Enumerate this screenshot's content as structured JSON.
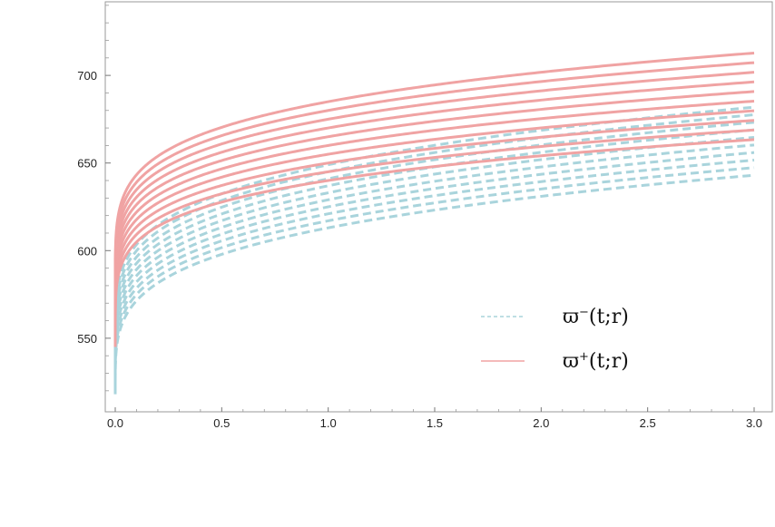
{
  "chart_data": {
    "type": "line",
    "xlim": [
      0,
      3.0
    ],
    "ylim": [
      508,
      742
    ],
    "x_ticks": [
      0.0,
      0.5,
      1.0,
      1.5,
      2.0,
      2.5,
      3.0
    ],
    "x_tick_labels": [
      "0.0",
      "0.5",
      "1.0",
      "1.5",
      "2.0",
      "2.5",
      "3.0"
    ],
    "y_ticks": [
      550,
      600,
      650,
      700
    ],
    "y_tick_labels": [
      "550",
      "600",
      "650",
      "700"
    ],
    "grid": false,
    "legend_position": "center-right",
    "model": "y = start + a*t^p",
    "x": [
      0,
      0.01,
      0.05,
      0.1,
      0.2,
      0.3,
      0.5,
      0.75,
      1.0,
      1.5,
      2.0,
      2.5,
      3.0
    ],
    "series": [
      {
        "name": "ϖ⁻(t;r)",
        "style": "dashed",
        "color": "#a9d4dc",
        "members": [
          {
            "start": 518,
            "a": 95,
            "p": 0.25
          },
          {
            "start": 521,
            "a": 96,
            "p": 0.25
          },
          {
            "start": 524,
            "a": 97,
            "p": 0.25
          },
          {
            "start": 527,
            "a": 98,
            "p": 0.25
          },
          {
            "start": 530,
            "a": 99,
            "p": 0.25
          },
          {
            "start": 533,
            "a": 100,
            "p": 0.25
          },
          {
            "start": 536,
            "a": 101,
            "p": 0.25
          },
          {
            "start": 539,
            "a": 102,
            "p": 0.25
          },
          {
            "start": 542,
            "a": 103,
            "p": 0.25
          },
          {
            "start": 545,
            "a": 104,
            "p": 0.25
          }
        ]
      },
      {
        "name": "ϖ⁺(t;r)",
        "style": "solid",
        "color": "#f0a3a3",
        "members": [
          {
            "start": 545,
            "a": 95,
            "p": 0.2
          },
          {
            "start": 548,
            "a": 97,
            "p": 0.2
          },
          {
            "start": 551,
            "a": 99,
            "p": 0.2
          },
          {
            "start": 554,
            "a": 101,
            "p": 0.2
          },
          {
            "start": 557,
            "a": 103,
            "p": 0.2
          },
          {
            "start": 560,
            "a": 105,
            "p": 0.2
          },
          {
            "start": 563,
            "a": 107,
            "p": 0.2
          },
          {
            "start": 566,
            "a": 109,
            "p": 0.2
          },
          {
            "start": 569,
            "a": 111,
            "p": 0.2
          },
          {
            "start": 572,
            "a": 113,
            "p": 0.2
          }
        ]
      }
    ],
    "legend": [
      {
        "label": "ϖ⁻(t;r)",
        "base": "ϖ",
        "sup": "−",
        "args": "(t;r)",
        "style": "dashed",
        "color": "#a9d4dc"
      },
      {
        "label": "ϖ⁺(t;r)",
        "base": "ϖ",
        "sup": "+",
        "args": "(t;r)",
        "style": "solid",
        "color": "#f0a3a3"
      }
    ]
  }
}
